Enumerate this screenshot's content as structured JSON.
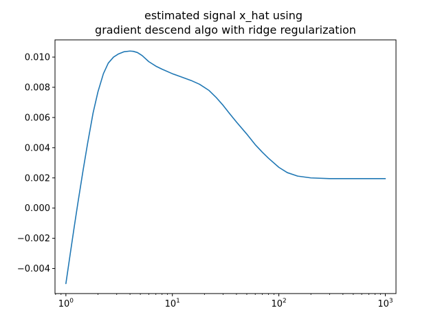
{
  "chart_data": {
    "type": "line",
    "title_lines": [
      "estimated signal x_hat using",
      "gradient descend algo with ridge regularization"
    ],
    "xlabel": "",
    "ylabel": "",
    "x_scale": "log",
    "xlim": [
      0.79,
      1260
    ],
    "ylim": [
      -0.00566,
      0.01114
    ],
    "grid": false,
    "x_ticks": [
      {
        "value": 1,
        "base": "10",
        "exp": "0"
      },
      {
        "value": 10,
        "base": "10",
        "exp": "1"
      },
      {
        "value": 100,
        "base": "10",
        "exp": "2"
      },
      {
        "value": 1000,
        "base": "10",
        "exp": "3"
      }
    ],
    "y_ticks": [
      {
        "value": -0.004,
        "label": "−0.004"
      },
      {
        "value": -0.002,
        "label": "−0.002"
      },
      {
        "value": 0.0,
        "label": "0.000"
      },
      {
        "value": 0.002,
        "label": "0.002"
      },
      {
        "value": 0.004,
        "label": "0.004"
      },
      {
        "value": 0.006,
        "label": "0.006"
      },
      {
        "value": 0.008,
        "label": "0.008"
      },
      {
        "value": 0.01,
        "label": "0.010"
      }
    ],
    "series": [
      {
        "color": "#1f77b4",
        "x": [
          1,
          1.1,
          1.2,
          1.3,
          1.45,
          1.6,
          1.8,
          2.0,
          2.25,
          2.5,
          2.8,
          3.1,
          3.5,
          4.0,
          4.3,
          4.7,
          5.2,
          6.0,
          7.0,
          8.0,
          10,
          12,
          15,
          18,
          22,
          26,
          30,
          35,
          40,
          50,
          60,
          70,
          80,
          100,
          120,
          150,
          200,
          300,
          500,
          1000
        ],
        "y": [
          -0.005,
          -0.003,
          -0.0012,
          0.0004,
          0.0025,
          0.0043,
          0.0063,
          0.0077,
          0.0089,
          0.0096,
          0.01,
          0.0102,
          0.01035,
          0.0104,
          0.01038,
          0.0103,
          0.0101,
          0.0097,
          0.0094,
          0.0092,
          0.0089,
          0.0087,
          0.00845,
          0.0082,
          0.0078,
          0.0073,
          0.0068,
          0.0062,
          0.0057,
          0.0049,
          0.0042,
          0.0037,
          0.0033,
          0.0027,
          0.00235,
          0.00212,
          0.002,
          0.00195,
          0.00195,
          0.00195
        ]
      }
    ]
  }
}
